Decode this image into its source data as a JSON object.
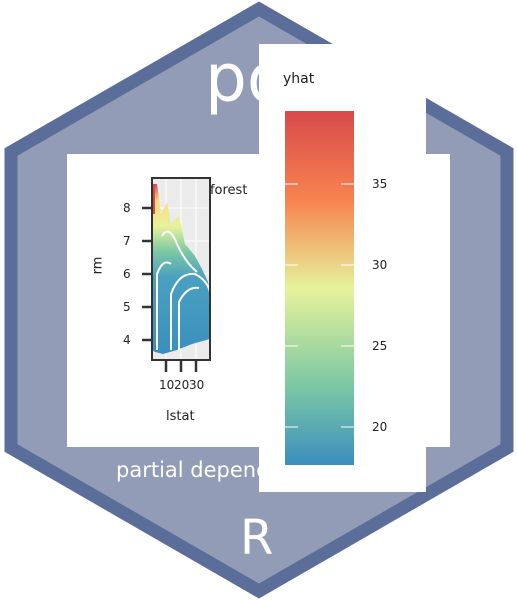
{
  "logo": {
    "title": "pdp",
    "subtitle": "partial dependence plots",
    "r_text": "R",
    "colors": {
      "hex_fill": "#929cb6",
      "hex_border": "#5b6d99",
      "text": "#ffffff"
    }
  },
  "chart_data": {
    "type": "heatmap",
    "title": "Random forest",
    "xlabel": "lstat",
    "ylabel": "rm",
    "x_ticks": [
      10,
      20,
      30
    ],
    "y_ticks": [
      4,
      5,
      6,
      7,
      8
    ],
    "legend": {
      "title": "yhat",
      "ticks": [
        20,
        25,
        30,
        35
      ],
      "colormap": [
        "#3a8fbe",
        "#7bc7a4",
        "#e6f29a",
        "#fddc80",
        "#f7834f",
        "#d84a4b"
      ]
    }
  }
}
